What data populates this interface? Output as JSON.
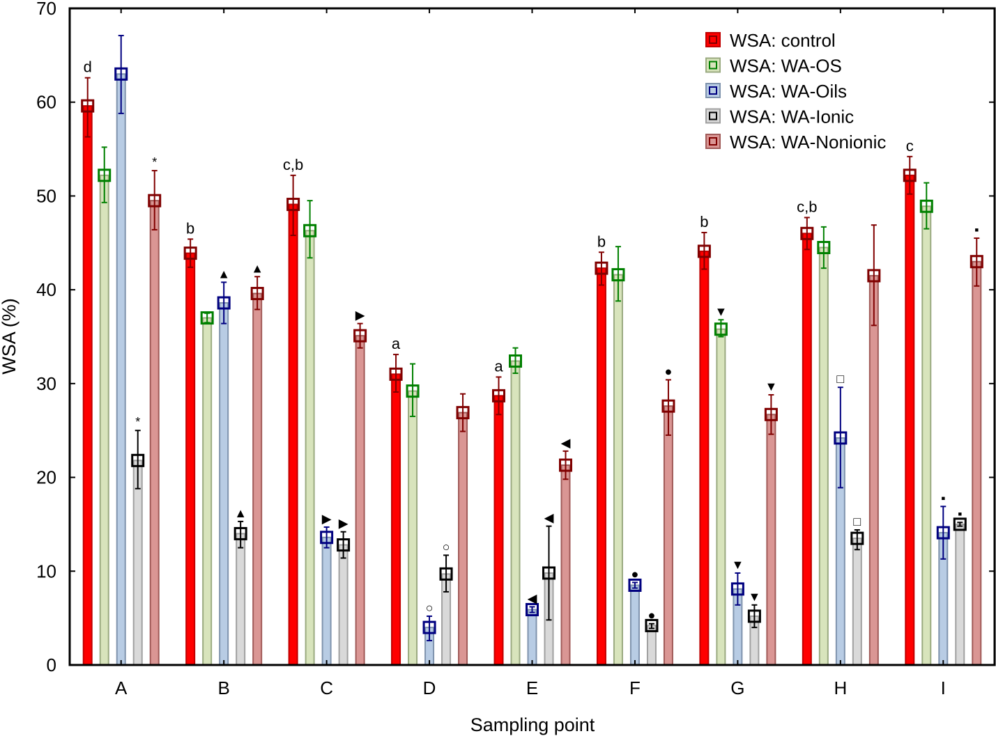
{
  "chart_data": {
    "type": "bar",
    "title": "",
    "xlabel": "Sampling point",
    "ylabel": "WSA (%)",
    "ylim": [
      0,
      70
    ],
    "yticks": [
      0,
      10,
      20,
      30,
      40,
      50,
      60,
      70
    ],
    "grid": false,
    "legend_position": "top-right",
    "categories": [
      "A",
      "B",
      "C",
      "D",
      "E",
      "F",
      "G",
      "H",
      "I"
    ],
    "series": [
      {
        "name": "WSA: control",
        "fill": "#ff0000",
        "edge": "#c00000",
        "marker": "#800000",
        "values": [
          59.6,
          43.9,
          49.1,
          31.0,
          28.7,
          42.3,
          44.1,
          46.0,
          52.2
        ],
        "err_high": [
          62.6,
          45.4,
          52.2,
          33.1,
          30.7,
          44.0,
          46.1,
          47.7,
          54.2
        ],
        "err_low": [
          56.3,
          42.4,
          45.8,
          29.1,
          26.7,
          40.5,
          42.2,
          44.3,
          50.2
        ],
        "annotations": [
          "d",
          "b",
          "c,b",
          "a",
          "a",
          "b",
          "b",
          "c,b",
          "c"
        ]
      },
      {
        "name": "WSA: WA-OS",
        "fill": "#d8e4bc",
        "edge": "#9aaa80",
        "marker": "#008000",
        "values": [
          52.2,
          37.0,
          46.3,
          29.2,
          32.4,
          41.6,
          35.8,
          44.5,
          48.9
        ],
        "err_high": [
          55.2,
          37.5,
          49.5,
          32.1,
          33.8,
          44.6,
          36.8,
          46.7,
          51.4
        ],
        "err_low": [
          49.3,
          36.5,
          43.4,
          26.5,
          31.1,
          38.8,
          35.0,
          42.3,
          46.5
        ],
        "annotations": [
          "",
          "",
          "",
          "",
          "",
          "",
          "▼",
          "",
          ""
        ]
      },
      {
        "name": "WSA: WA-Oils",
        "fill": "#b8cce4",
        "edge": "#7f93ad",
        "marker": "#000080",
        "values": [
          63.0,
          38.6,
          13.6,
          4.0,
          5.9,
          8.5,
          8.1,
          24.2,
          14.1
        ],
        "err_high": [
          67.1,
          40.8,
          14.7,
          5.2,
          6.2,
          8.8,
          9.8,
          29.6,
          16.9
        ],
        "err_low": [
          58.8,
          36.4,
          12.5,
          2.6,
          5.6,
          8.2,
          6.4,
          18.9,
          11.3
        ],
        "annotations": [
          "",
          "▲",
          "▶",
          "○",
          "◀",
          "●",
          "▼",
          "□",
          "▪"
        ]
      },
      {
        "name": "WSA: WA-Ionic",
        "fill": "#d9d9d9",
        "edge": "#a0a0a0",
        "marker": "#000000",
        "values": [
          21.8,
          14.0,
          12.8,
          9.7,
          9.8,
          4.2,
          5.2,
          13.5,
          15.0
        ],
        "err_high": [
          25.0,
          15.3,
          14.2,
          11.7,
          14.8,
          4.4,
          6.4,
          14.4,
          15.2
        ],
        "err_low": [
          18.8,
          12.5,
          11.4,
          7.8,
          4.8,
          3.9,
          4.0,
          12.3,
          14.8
        ],
        "annotations": [
          "*",
          "▲",
          "▶",
          "○",
          "◀",
          "●",
          "▼",
          "□",
          "▪"
        ]
      },
      {
        "name": "WSA: WA-Nonionic",
        "fill": "#da9694",
        "edge": "#a05a58",
        "marker": "#800000",
        "values": [
          49.5,
          39.6,
          35.1,
          26.9,
          21.3,
          27.6,
          26.7,
          41.5,
          43.0
        ],
        "err_high": [
          52.7,
          41.4,
          36.4,
          28.9,
          22.8,
          30.4,
          28.8,
          46.9,
          45.5
        ],
        "err_low": [
          46.4,
          37.9,
          33.8,
          24.9,
          19.8,
          24.5,
          24.6,
          36.2,
          40.4
        ],
        "annotations": [
          "*",
          "▲",
          "▶",
          "",
          "◀",
          "●",
          "▼",
          "",
          "▪"
        ]
      }
    ]
  }
}
